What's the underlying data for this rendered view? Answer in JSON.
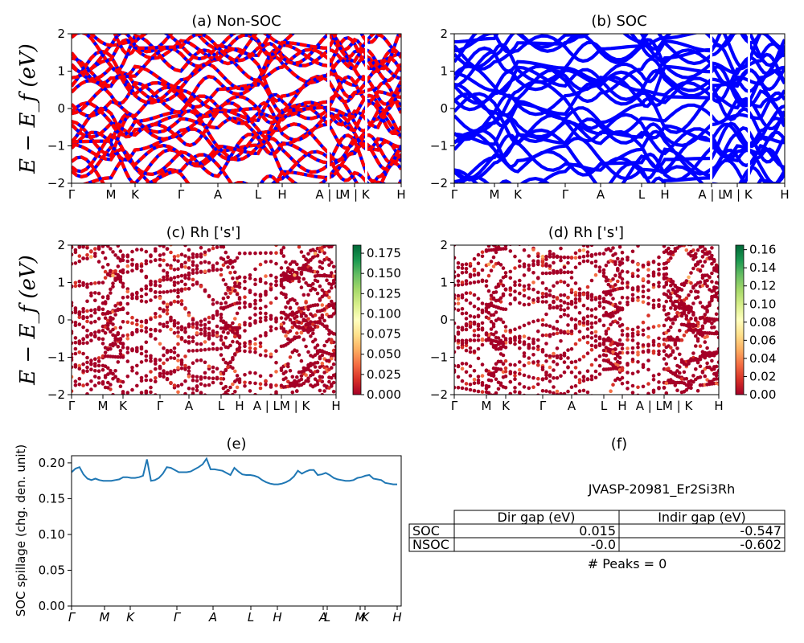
{
  "chart_data": [
    {
      "id": "a",
      "type": "line",
      "title": "(a) Non-SOC",
      "ylabel": "E − E_f (eV)",
      "ylim": [
        -2,
        2
      ],
      "yticks": [
        "2",
        "1",
        "0",
        "−1",
        "−2"
      ],
      "xtick_labels": [
        "Γ",
        "M",
        "K",
        "Γ",
        "A",
        "L",
        "H",
        "A | L",
        "M | K",
        "H"
      ],
      "series": [
        {
          "color": "#ff0000",
          "dash_color": "#0000ff"
        }
      ]
    },
    {
      "id": "b",
      "type": "line",
      "title": "(b) SOC",
      "ylim": [
        -2,
        2
      ],
      "yticks": [
        "2",
        "1",
        "0",
        "−1",
        "−2"
      ],
      "xtick_labels": [
        "Γ",
        "M",
        "K",
        "Γ",
        "A",
        "L",
        "H",
        "A | L",
        "M | K",
        "H"
      ],
      "series": [
        {
          "color": "#0000ff"
        }
      ]
    },
    {
      "id": "c",
      "type": "scatter",
      "title": "(c)  Rh ['s']",
      "ylabel": "E − E_f (eV)",
      "ylim": [
        -2,
        2
      ],
      "yticks": [
        "2",
        "1",
        "0",
        "−1",
        "−2"
      ],
      "xtick_labels": [
        "Γ",
        "M",
        "K",
        "Γ",
        "A",
        "L",
        "H",
        "A | LM | K",
        "H"
      ],
      "colorbar_ticks": [
        "0.175",
        "0.150",
        "0.125",
        "0.100",
        "0.075",
        "0.050",
        "0.025",
        "0.000"
      ],
      "colorbar_range": [
        0,
        0.185
      ]
    },
    {
      "id": "d",
      "type": "scatter",
      "title": "(d) Rh ['s']",
      "ylim": [
        -2,
        2
      ],
      "yticks": [
        "2",
        "1",
        "0",
        "−1",
        "−2"
      ],
      "xtick_labels": [
        "Γ",
        "M",
        "K",
        "Γ",
        "A",
        "L",
        "H",
        "A | LM | K",
        "H"
      ],
      "colorbar_ticks": [
        "0.16",
        "0.14",
        "0.12",
        "0.10",
        "0.08",
        "0.06",
        "0.04",
        "0.02",
        "0.00"
      ],
      "colorbar_range": [
        0,
        0.165
      ]
    },
    {
      "id": "e",
      "type": "line",
      "title": "(e)",
      "ylabel": "SOC spillage (chg. den. unit)",
      "ylim": [
        0,
        0.21
      ],
      "yticks": [
        "0.20",
        "0.15",
        "0.10",
        "0.05",
        "0.00"
      ],
      "xtick_labels": [
        "Γ",
        "M",
        "K",
        "Γ",
        "A",
        "L",
        "H",
        "A",
        "L",
        "M",
        "K",
        "H"
      ],
      "series": [
        {
          "color": "#1f77b4",
          "values": [
            0.187,
            0.192,
            0.194,
            0.184,
            0.178,
            0.176,
            0.178,
            0.176,
            0.175,
            0.175,
            0.175,
            0.176,
            0.177,
            0.18,
            0.18,
            0.179,
            0.179,
            0.18,
            0.182,
            0.205,
            0.175,
            0.176,
            0.179,
            0.185,
            0.194,
            0.193,
            0.19,
            0.187,
            0.187,
            0.187,
            0.188,
            0.191,
            0.194,
            0.198,
            0.206,
            0.191,
            0.191,
            0.19,
            0.189,
            0.186,
            0.183,
            0.193,
            0.188,
            0.184,
            0.183,
            0.183,
            0.182,
            0.18,
            0.176,
            0.173,
            0.171,
            0.17,
            0.17,
            0.171,
            0.173,
            0.176,
            0.181,
            0.189,
            0.185,
            0.188,
            0.19,
            0.19,
            0.183,
            0.184,
            0.186,
            0.183,
            0.179,
            0.177,
            0.176,
            0.175,
            0.175,
            0.176,
            0.179,
            0.18,
            0.182,
            0.183,
            0.178,
            0.177,
            0.176,
            0.172,
            0.171,
            0.17,
            0.17
          ]
        }
      ]
    }
  ],
  "panel_f": {
    "title": "(f)",
    "jid": "JVASP-20981_Er2Si3Rh",
    "table": {
      "columns": [
        "Dir gap (eV)",
        "Indir gap (eV)"
      ],
      "rows": [
        {
          "label": "SOC",
          "dir": "0.015",
          "indir": "-0.547"
        },
        {
          "label": "NSOC",
          "dir": "-0.0",
          "indir": "-0.602"
        }
      ]
    },
    "peaks": "# Peaks = 0"
  }
}
